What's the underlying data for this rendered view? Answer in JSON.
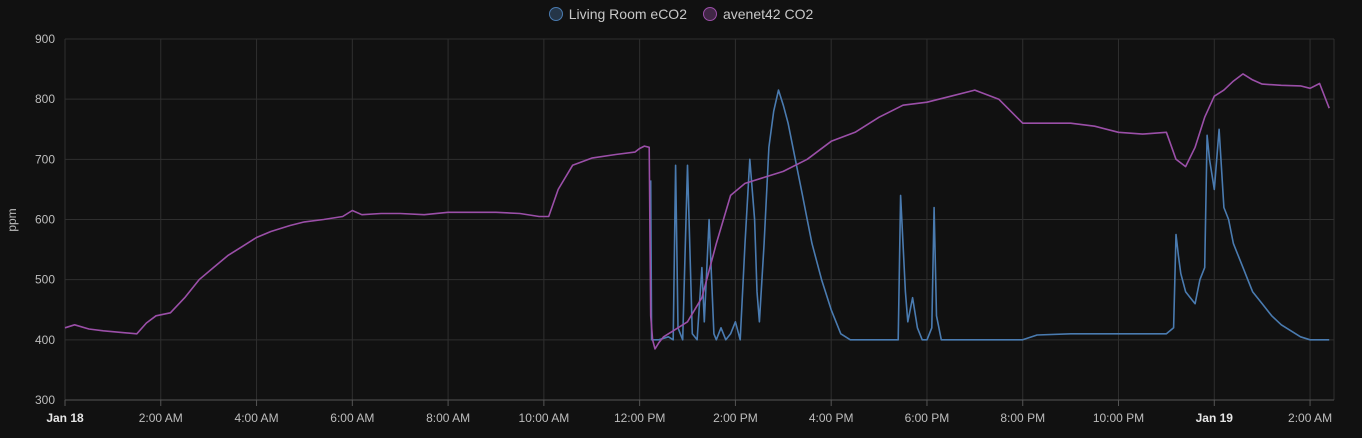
{
  "chart_data": {
    "type": "line",
    "ylabel": "ppm",
    "ylim": [
      300,
      900
    ],
    "yticks": [
      300,
      400,
      500,
      600,
      700,
      800,
      900
    ],
    "xlim_hours": [
      0,
      26.5
    ],
    "xticks": [
      {
        "h": 0,
        "label": "Jan 18",
        "bold": true
      },
      {
        "h": 2,
        "label": "2:00 AM"
      },
      {
        "h": 4,
        "label": "4:00 AM"
      },
      {
        "h": 6,
        "label": "6:00 AM"
      },
      {
        "h": 8,
        "label": "8:00 AM"
      },
      {
        "h": 10,
        "label": "10:00 AM"
      },
      {
        "h": 12,
        "label": "12:00 PM"
      },
      {
        "h": 14,
        "label": "2:00 PM"
      },
      {
        "h": 16,
        "label": "4:00 PM"
      },
      {
        "h": 18,
        "label": "6:00 PM"
      },
      {
        "h": 20,
        "label": "8:00 PM"
      },
      {
        "h": 22,
        "label": "10:00 PM"
      },
      {
        "h": 24,
        "label": "Jan 19",
        "bold": true
      },
      {
        "h": 26,
        "label": "2:00 AM"
      }
    ],
    "grid": true,
    "legend_position": "top-center",
    "series": [
      {
        "name": "Living Room eCO2",
        "color": "#4a7bb0",
        "x_hours": [
          12.23,
          12.25,
          12.3,
          12.4,
          12.6,
          12.7,
          12.75,
          12.8,
          12.9,
          13.0,
          13.1,
          13.2,
          13.3,
          13.35,
          13.45,
          13.55,
          13.6,
          13.7,
          13.8,
          13.9,
          14.0,
          14.1,
          14.2,
          14.3,
          14.4,
          14.45,
          14.5,
          14.6,
          14.7,
          14.8,
          14.9,
          15.0,
          15.1,
          15.2,
          15.3,
          15.4,
          15.5,
          15.6,
          15.8,
          16.0,
          16.2,
          16.4,
          16.6,
          16.8,
          17.0,
          17.2,
          17.4,
          17.45,
          17.5,
          17.55,
          17.6,
          17.7,
          17.8,
          17.9,
          18.0,
          18.1,
          18.15,
          18.2,
          18.3,
          18.4,
          18.5,
          19.0,
          20.0,
          20.3,
          21.0,
          22.0,
          23.0,
          23.15,
          23.2,
          23.25,
          23.3,
          23.4,
          23.5,
          23.6,
          23.7,
          23.8,
          23.85,
          23.9,
          24.0,
          24.1,
          24.2,
          24.3,
          24.4,
          24.5,
          24.6,
          24.7,
          24.8,
          24.9,
          25.0,
          25.2,
          25.4,
          25.6,
          25.8,
          26.0,
          26.2,
          26.4
        ],
        "y": [
          665,
          400,
          400,
          400,
          405,
          400,
          690,
          420,
          400,
          690,
          410,
          400,
          520,
          430,
          600,
          410,
          400,
          420,
          400,
          410,
          430,
          400,
          560,
          700,
          600,
          480,
          430,
          560,
          720,
          780,
          815,
          790,
          760,
          720,
          680,
          640,
          600,
          560,
          500,
          450,
          410,
          400,
          400,
          400,
          400,
          400,
          400,
          640,
          560,
          480,
          430,
          470,
          420,
          400,
          400,
          420,
          620,
          440,
          400,
          400,
          400,
          400,
          400,
          408,
          410,
          410,
          410,
          420,
          575,
          540,
          510,
          480,
          470,
          460,
          500,
          520,
          740,
          700,
          650,
          750,
          620,
          600,
          560,
          540,
          520,
          500,
          480,
          470,
          460,
          440,
          425,
          415,
          405,
          400,
          400,
          400
        ]
      },
      {
        "name": "avenet42 CO2",
        "color": "#9b4fa8",
        "x_hours": [
          0,
          0.2,
          0.5,
          0.8,
          1.2,
          1.5,
          1.7,
          1.9,
          2.2,
          2.5,
          2.8,
          3.1,
          3.4,
          3.7,
          4.0,
          4.3,
          4.7,
          5.0,
          5.4,
          5.8,
          6.0,
          6.2,
          6.6,
          7.0,
          7.5,
          8.0,
          8.5,
          9.0,
          9.5,
          9.9,
          10.1,
          10.3,
          10.6,
          11.0,
          11.5,
          11.9,
          12.0,
          12.1,
          12.2,
          12.23,
          12.27,
          12.32,
          12.4,
          12.5,
          12.7,
          13.0,
          13.3,
          13.6,
          13.9,
          14.2,
          14.6,
          15.0,
          15.5,
          16.0,
          16.5,
          17.0,
          17.5,
          18.0,
          18.5,
          19.0,
          19.5,
          20.0,
          20.5,
          21.0,
          21.5,
          22.0,
          22.5,
          23.0,
          23.2,
          23.4,
          23.6,
          23.8,
          24.0,
          24.2,
          24.4,
          24.6,
          24.8,
          25.0,
          25.4,
          25.8,
          26.0,
          26.2,
          26.4
        ],
        "y": [
          420,
          425,
          418,
          415,
          412,
          410,
          428,
          440,
          445,
          470,
          500,
          520,
          540,
          555,
          570,
          580,
          590,
          596,
          600,
          605,
          615,
          608,
          610,
          610,
          608,
          612,
          612,
          612,
          610,
          605,
          605,
          650,
          690,
          702,
          708,
          712,
          718,
          722,
          720,
          440,
          400,
          385,
          395,
          405,
          415,
          430,
          470,
          560,
          640,
          660,
          670,
          680,
          700,
          730,
          745,
          770,
          790,
          795,
          805,
          815,
          800,
          760,
          760,
          760,
          755,
          745,
          742,
          745,
          700,
          688,
          720,
          770,
          805,
          815,
          830,
          842,
          832,
          825,
          823,
          822,
          818,
          826,
          785
        ]
      }
    ]
  }
}
